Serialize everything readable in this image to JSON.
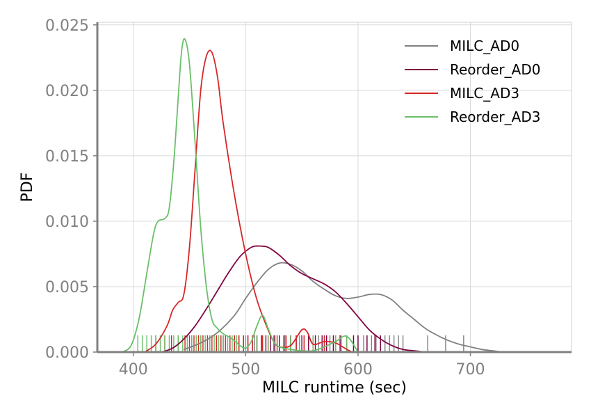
{
  "chart_data": {
    "type": "line",
    "subtype": "kde-with-rug",
    "xlabel": "MILC runtime (sec)",
    "ylabel": "PDF",
    "xlim": [
      368,
      790
    ],
    "ylim": [
      0,
      0.0252
    ],
    "xticks": [
      400,
      500,
      600,
      700
    ],
    "yticks": [
      0.0,
      0.005,
      0.01,
      0.015,
      0.02,
      0.025
    ],
    "xtick_labels": [
      "400",
      "500",
      "600",
      "700"
    ],
    "ytick_labels": [
      "0.000",
      "0.005",
      "0.010",
      "0.015",
      "0.020",
      "0.025"
    ],
    "grid": true,
    "legend_position": "top-right",
    "series": [
      {
        "name": "MILC_AD0",
        "color": "#808080",
        "x": [
          445,
          460,
          475,
          490,
          500,
          510,
          520,
          530,
          540,
          550,
          560,
          570,
          580,
          590,
          600,
          610,
          620,
          630,
          640,
          650,
          660,
          670,
          680,
          690,
          700,
          710,
          720,
          730,
          745
        ],
        "y": [
          0.0002,
          0.0007,
          0.0015,
          0.0028,
          0.0041,
          0.0053,
          0.0063,
          0.0068,
          0.0067,
          0.0062,
          0.0054,
          0.0048,
          0.0043,
          0.0041,
          0.0042,
          0.0044,
          0.0044,
          0.004,
          0.0032,
          0.0025,
          0.0018,
          0.0013,
          0.0009,
          0.0006,
          0.0004,
          0.0002,
          0.0001,
          0.0,
          0.0
        ],
        "rug": [
          478,
          490,
          500,
          508,
          515,
          520,
          525,
          530,
          535,
          540,
          545,
          548,
          552,
          556,
          560,
          565,
          570,
          575,
          580,
          585,
          590,
          596,
          600,
          605,
          608,
          612,
          616,
          620,
          624,
          628,
          632,
          636,
          640,
          662,
          678,
          694
        ]
      },
      {
        "name": "Reorder_AD0",
        "color": "#800040",
        "x": [
          425,
          435,
          445,
          455,
          465,
          475,
          485,
          495,
          505,
          512,
          520,
          530,
          540,
          550,
          560,
          570,
          580,
          590,
          600,
          610,
          620,
          630,
          640,
          650,
          660
        ],
        "y": [
          0.0,
          0.0003,
          0.001,
          0.002,
          0.0033,
          0.0047,
          0.0061,
          0.0073,
          0.008,
          0.0081,
          0.008,
          0.0074,
          0.0066,
          0.006,
          0.0056,
          0.0052,
          0.0046,
          0.0037,
          0.0027,
          0.0017,
          0.001,
          0.0005,
          0.0002,
          0.0001,
          0.0
        ],
        "rug": [
          452,
          460,
          468,
          474,
          480,
          486,
          490,
          494,
          498,
          502,
          506,
          510,
          514,
          518,
          522,
          526,
          530,
          534,
          540,
          545,
          550,
          556,
          562,
          568,
          572,
          578,
          584,
          590,
          596,
          600,
          608,
          615,
          620
        ]
      },
      {
        "name": "MILC_AD3",
        "color": "#d62728",
        "x": [
          410,
          420,
          430,
          435,
          440,
          445,
          450,
          455,
          460,
          465,
          470,
          475,
          480,
          490,
          500,
          510,
          520,
          525,
          530,
          540,
          550,
          555,
          560,
          570,
          580,
          590,
          595
        ],
        "y": [
          0.0,
          0.0006,
          0.002,
          0.0032,
          0.0038,
          0.0044,
          0.008,
          0.014,
          0.02,
          0.0226,
          0.0229,
          0.021,
          0.0175,
          0.012,
          0.0075,
          0.004,
          0.0017,
          0.0008,
          0.0004,
          0.0005,
          0.0017,
          0.0015,
          0.0006,
          0.0008,
          0.0007,
          0.0002,
          0.0
        ],
        "rug": [
          420,
          428,
          434,
          440,
          446,
          450,
          454,
          458,
          462,
          466,
          470,
          474,
          478,
          482,
          486,
          490,
          494,
          498,
          502,
          506,
          510,
          515,
          520,
          528,
          536,
          545,
          552,
          560,
          570,
          580
        ]
      },
      {
        "name": "Reorder_AD3",
        "color": "#6abf69",
        "x": [
          390,
          398,
          405,
          412,
          418,
          422,
          428,
          432,
          436,
          440,
          443,
          446,
          450,
          455,
          460,
          465,
          470,
          475,
          480,
          488,
          495,
          500,
          505,
          510,
          515,
          520,
          525,
          530,
          540,
          550,
          560,
          570,
          580,
          590,
          600
        ],
        "y": [
          0.0,
          0.0005,
          0.0025,
          0.006,
          0.009,
          0.01,
          0.0102,
          0.011,
          0.0145,
          0.0195,
          0.023,
          0.0239,
          0.022,
          0.016,
          0.0095,
          0.005,
          0.0025,
          0.0018,
          0.0014,
          0.001,
          0.0005,
          0.0003,
          0.0008,
          0.002,
          0.0028,
          0.0018,
          0.0008,
          0.0004,
          0.0002,
          0.0001,
          0.0001,
          0.0004,
          0.0008,
          0.0012,
          0.0
        ],
        "rug": [
          404,
          408,
          412,
          416,
          420,
          424,
          428,
          432,
          436,
          440,
          444,
          448,
          452,
          456,
          460,
          464,
          468,
          472,
          476,
          480,
          484,
          488,
          492,
          500,
          510,
          520,
          540,
          560,
          580,
          590
        ]
      }
    ]
  }
}
